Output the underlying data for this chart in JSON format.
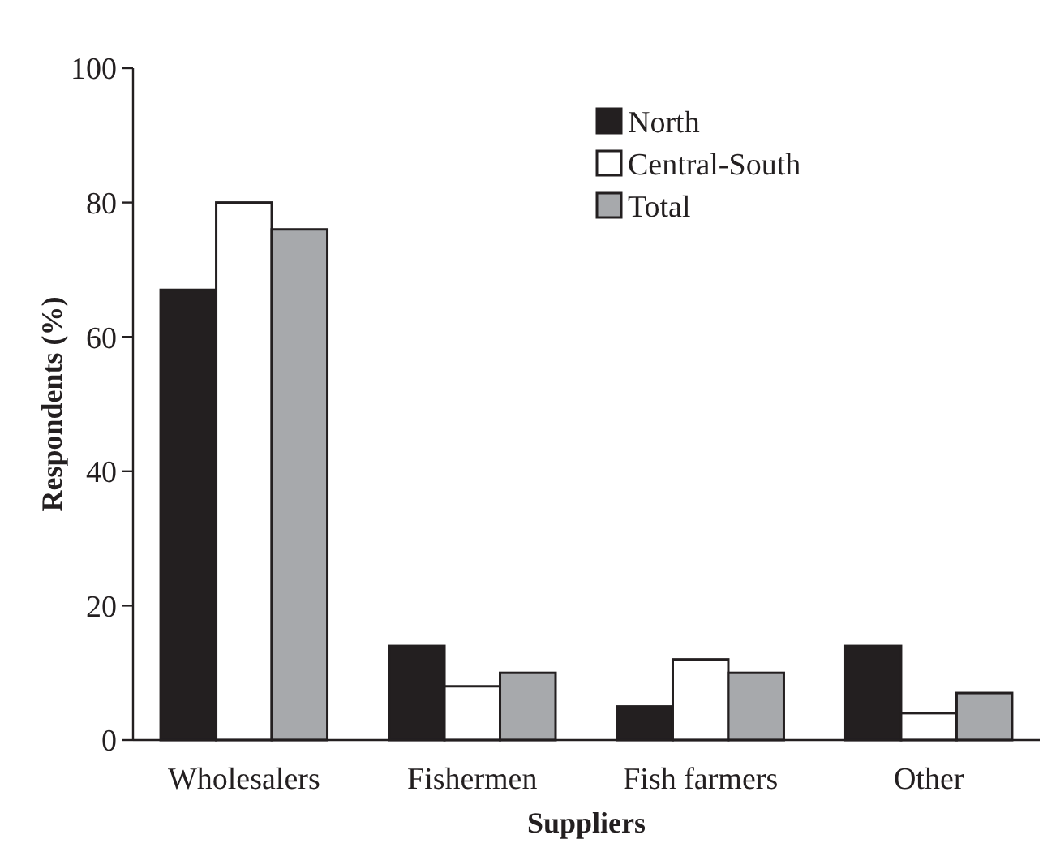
{
  "chart_data": {
    "type": "bar",
    "xlabel": "Suppliers",
    "ylabel": "Respondents (%)",
    "categories": [
      "Wholesalers",
      "Fishermen",
      "Fish farmers",
      "Other"
    ],
    "series": [
      {
        "name": "North",
        "color": "#231f20",
        "values": [
          67,
          14,
          5,
          14
        ]
      },
      {
        "name": "Central-South",
        "color": "#ffffff",
        "values": [
          80,
          8,
          12,
          4
        ]
      },
      {
        "name": "Total",
        "color": "#a7a9ac",
        "values": [
          76,
          10,
          10,
          7
        ]
      }
    ],
    "ylim": [
      0,
      100
    ],
    "yticks": [
      0,
      20,
      40,
      60,
      80,
      100
    ],
    "legend": "top right",
    "grid": false
  }
}
